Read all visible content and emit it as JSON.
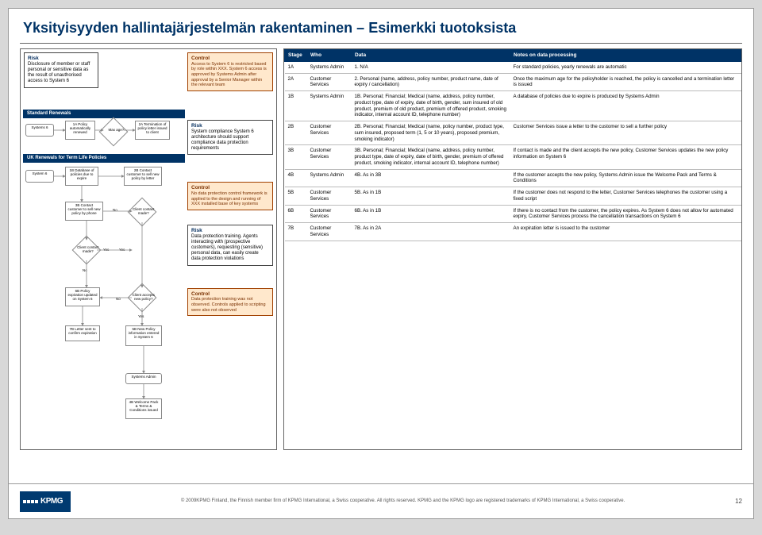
{
  "title": "Yksityisyyden hallintajärjestelmän rakentaminen – Esimerkki tuotoksista",
  "flow": {
    "section1": "Standard Renewals",
    "section2": "UK Renewals for Term Life Policies",
    "risk1_h": "Risk",
    "risk1": "Disclosure of member or staff personal or sensitive data as the result of unauthorised access to System 6",
    "ctrl1_h": "Control",
    "ctrl1": "Access to System 6 is restricted based by role within XXX. System 6 access is approved by Systems Admin after approval by a Senior Manager within the relevant team",
    "risk2_h": "Risk",
    "risk2": "System compliance System 6 architecture should support compliance data protection requirements",
    "ctrl2_h": "Control",
    "ctrl2": "No data protection control framework is applied to the design and running of XXX installed base of key systems",
    "risk3_h": "Risk",
    "risk3": "Data protection training. Agents interacting with (prospective customers), requesting (sensitive) personal data, can easily create data protection violations",
    "ctrl3_h": "Control",
    "ctrl3": "Data protection training was not observed. Controls applied to scripting were also not observed",
    "n_sys6a": "Systems 6",
    "n_1a": "1A Policy automatically renewed",
    "n_maxage": "Max age?",
    "n_2a": "2A Termination of policy letter issued to client",
    "n_sys6b": "System 6",
    "n_1b": "1B Database of policies due to expire",
    "n_2b": "2B Contact customer to sell new policy by letter",
    "n_3b": "3B Contact customer to sell new policy by phone",
    "n_cc1": "Client contact made?",
    "n_cc2": "Client contact made?",
    "n_6b": "6B Policy expiration updated on System 6",
    "n_accept": "Client accepts new policy?",
    "n_7b": "7B Letter sent to confirm expiration",
    "n_5b": "5B New Policy information entered in System 6",
    "n_sa": "Systems Admin",
    "n_4b": "4B Welcome Pack & Terms & Conditions issued",
    "yes": "Yes",
    "no": "No"
  },
  "table": {
    "h1": "Stage",
    "h2": "Who",
    "h3": "Data",
    "h4": "Notes on data processing",
    "rows": [
      {
        "s": "1A",
        "w": "Systems Admin",
        "d": "1. N/A",
        "n": "For standard policies, yearly renewals are automatic"
      },
      {
        "s": "2A",
        "w": "Customer Services",
        "d": "2. Personal (name, address, policy number, product name, date of expiry / cancellation)",
        "n": "Once the maximum age for the policyholder is reached, the policy is cancelled and a termination letter is issued"
      },
      {
        "s": "1B",
        "w": "Systems Admin",
        "d": "1B. Personal; Financial; Medical (name, address, policy number, product type, date of expiry, date of birth, gender, sum insured of old product, premium of old product, premium of offered product, smoking indicator, internal account ID, telephone number)",
        "n": "A database of policies due to expire is produced by Systems Admin"
      },
      {
        "s": "2B",
        "w": "Customer Services",
        "d": "2B. Personal; Financial; Medical (name, policy number, product type, sum insured, proposed term (1, 5 or 10 years), proposed premium, smoking indicator)",
        "n": "Customer Services issue a letter to the customer to sell a further policy"
      },
      {
        "s": "3B",
        "w": "Customer Services",
        "d": "3B. Personal; Financial; Medical (name, address, policy number, product type, date of expiry, date of birth, gender, premium of offered product, smoking indicator, internal account ID, telephone number)",
        "n": "If contact is made and the client accepts the new policy, Customer Services updates the new policy information on System 6"
      },
      {
        "s": "4B",
        "w": "Systems Admin",
        "d": "4B. As in 3B",
        "n": "If the customer accepts the new policy, Systems Admin issue the Welcome Pack and Terms & Conditions"
      },
      {
        "s": "5B",
        "w": "Customer Services",
        "d": "5B. As in 1B",
        "n": "If the customer does not respond to the letter, Customer Services telephones the customer using a fixed script"
      },
      {
        "s": "6B",
        "w": "Customer Services",
        "d": "6B. As in 1B",
        "n": "If there is no contact from the customer, the policy expires. As System 6 does not allow for automated expiry, Customer Services process the cancellation transactions on System 6"
      },
      {
        "s": "7B",
        "w": "Customer Services",
        "d": "7B. As in 2A",
        "n": "An expiration letter is issued to the customer"
      }
    ]
  },
  "footer": {
    "logo": "KPMG",
    "copy": "© 2009KPMG Finland, the Finnish member firm of KPMG International, a Swiss cooperative. All rights reserved. KPMG and the KPMG logo are registered trademarks of KPMG International, a Swiss cooperative.",
    "page": "12"
  }
}
